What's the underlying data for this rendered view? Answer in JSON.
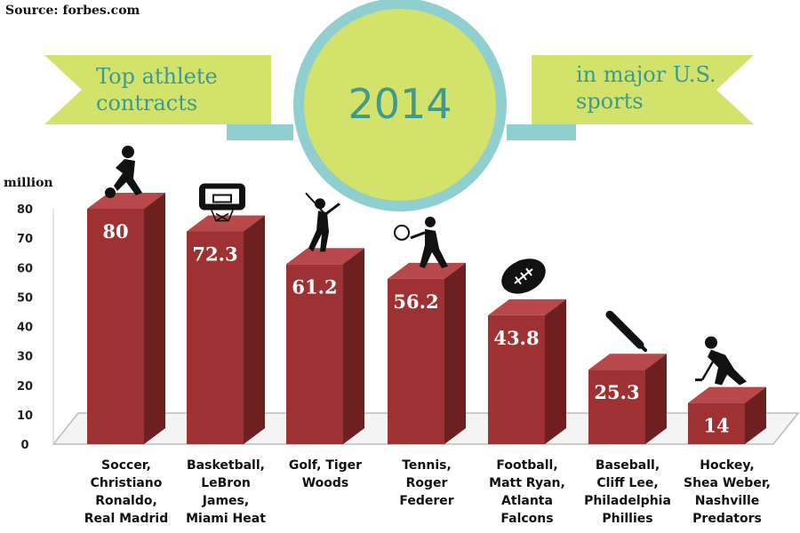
{
  "source": "Source: forbes.com",
  "banner": {
    "left_line1": "Top athlete",
    "left_line2": "contracts",
    "center": "2014",
    "right_line1": "in major U.S.",
    "right_line2": "sports"
  },
  "colors": {
    "bar_front": "#9e3233",
    "bar_top": "#b9484a",
    "bar_side": "#6e2021",
    "banner_fill": "#d2e26a",
    "banner_text": "#3e9a8e",
    "circle_ring": "#8fcfcf"
  },
  "chart_data": {
    "type": "bar",
    "unit_label": "million",
    "ylim": [
      0,
      80
    ],
    "yticks": [
      0,
      10,
      20,
      30,
      40,
      50,
      60,
      70,
      80
    ],
    "categories": [
      "Soccer, Christiano Ronaldo, Real Madrid",
      "Basketball, LeBron James, Miami Heat",
      "Golf, Tiger Woods",
      "Tennis, Roger Federer",
      "Football, Matt Ryan, Atlanta Falcons",
      "Baseball, Cliff Lee, Philadelphia Phillies",
      "Hockey, Shea Weber, Nashville Predators"
    ],
    "category_lines": [
      [
        "Soccer,",
        "Christiano",
        "Ronaldo,",
        "Real Madrid"
      ],
      [
        "Basketball,",
        "LeBron",
        "James,",
        "Miami Heat"
      ],
      [
        "Golf, Tiger",
        "Woods"
      ],
      [
        "Tennis,",
        "Roger",
        "Federer"
      ],
      [
        "Football,",
        "Matt Ryan,",
        "Atlanta",
        "Falcons"
      ],
      [
        "Baseball,",
        "Cliff Lee,",
        "Philadelphia",
        "Phillies"
      ],
      [
        "Hockey,",
        "Shea Weber,",
        "Nashville",
        "Predators"
      ]
    ],
    "values": [
      80,
      72.3,
      61.2,
      56.2,
      43.8,
      25.3,
      14
    ],
    "value_labels": [
      "80",
      "72.3",
      "61.2",
      "56.2",
      "43.8",
      "25.3",
      "14"
    ],
    "icons": [
      "soccer-player-icon",
      "basketball-hoop-icon",
      "golfer-icon",
      "tennis-player-icon",
      "football-icon",
      "baseball-bat-icon",
      "hockey-player-icon"
    ],
    "grid": false,
    "legend": "none"
  }
}
